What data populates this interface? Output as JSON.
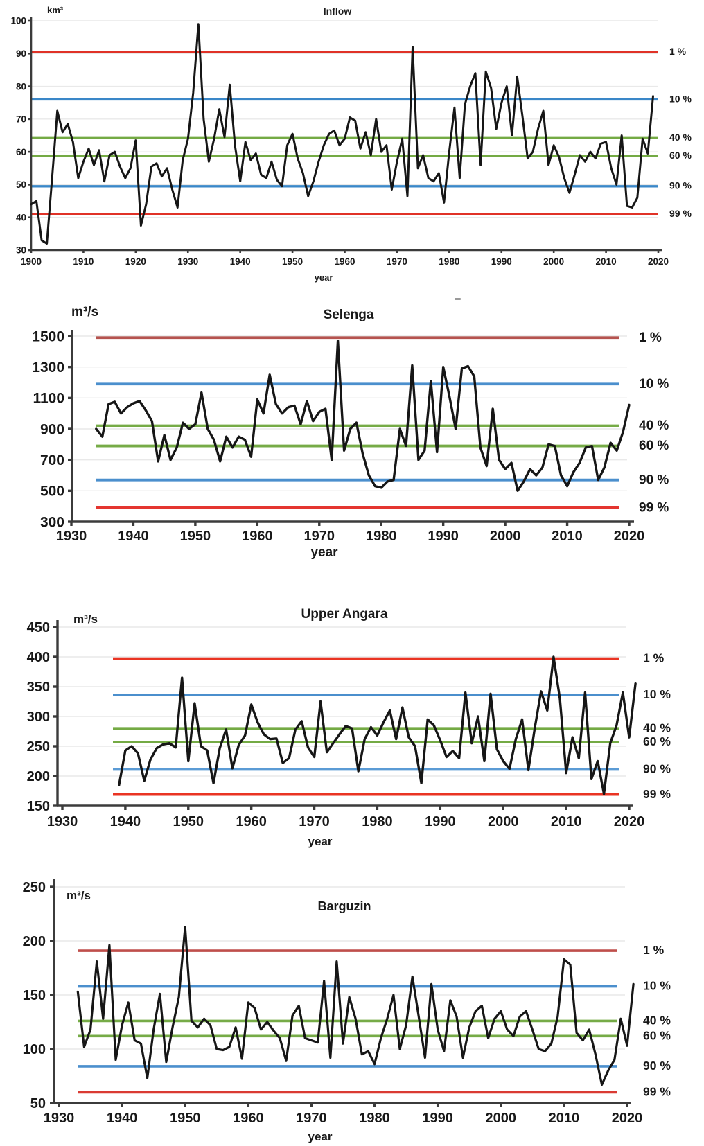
{
  "figure": {
    "background": "#ffffff",
    "axis_color": "#3b3b3b",
    "grid_color": "#e9e9e9",
    "stray_mark": "-"
  },
  "chart_data": [
    {
      "type": "line",
      "title": "Inflow",
      "unit_label": "km³",
      "xlabel": "year",
      "ylim": [
        30,
        100
      ],
      "yticks": [
        30,
        40,
        50,
        60,
        70,
        80,
        90,
        100
      ],
      "xlim": [
        1900,
        2020
      ],
      "xticks": [
        1900,
        1910,
        1920,
        1930,
        1940,
        1950,
        1960,
        1970,
        1980,
        1990,
        2000,
        2010,
        2020
      ],
      "grid": true,
      "legend_position": "right",
      "line_color": "#161616",
      "ref_lines": [
        {
          "label": "1 %",
          "value": 90.5,
          "color": "#e03227"
        },
        {
          "label": "10 %",
          "value": 76.0,
          "color": "#3a87c8"
        },
        {
          "label": "40 %",
          "value": 64.2,
          "color": "#74aa44"
        },
        {
          "label": "60 %",
          "value": 58.7,
          "color": "#74aa44"
        },
        {
          "label": "90 %",
          "value": 49.5,
          "color": "#3a87c8"
        },
        {
          "label": "99 %",
          "value": 41.0,
          "color": "#e03227"
        }
      ],
      "series": {
        "start_year": 1900,
        "values": [
          44,
          45,
          33,
          32,
          52,
          72.5,
          66,
          68.5,
          63,
          52,
          57,
          61,
          56,
          60.5,
          51,
          59,
          60,
          55.5,
          52,
          55,
          63.5,
          37.5,
          44,
          55.5,
          56.5,
          52.5,
          55,
          48.5,
          43,
          57.5,
          64,
          78,
          99,
          70,
          57,
          64,
          73,
          64.5,
          80.5,
          62,
          51,
          63,
          57.5,
          59.5,
          53,
          52,
          57,
          51.5,
          49.5,
          62,
          65.5,
          58,
          53.5,
          46.5,
          51,
          57,
          62,
          65.5,
          66.5,
          62,
          64,
          70.5,
          69.5,
          61,
          66,
          59,
          70,
          60,
          62,
          48.5,
          57,
          64,
          46.5,
          92,
          55,
          59,
          52,
          51,
          53.5,
          44.5,
          60,
          73.5,
          52,
          74.5,
          80,
          84,
          56,
          84.5,
          79.5,
          67,
          75,
          80,
          65,
          83,
          71,
          58,
          60,
          67,
          72.5,
          56,
          62,
          58.5,
          52,
          47.5,
          53,
          59,
          57,
          60,
          58,
          62.5,
          63,
          55,
          50,
          65,
          43.5,
          43,
          46,
          64,
          59.5,
          77
        ]
      }
    },
    {
      "type": "line",
      "title": "Selenga",
      "unit_label": "m³/s",
      "xlabel": "year",
      "ylim": [
        300,
        1500
      ],
      "yticks": [
        300,
        500,
        700,
        900,
        1100,
        1300,
        1500
      ],
      "xlim": [
        1930,
        2020
      ],
      "xticks": [
        1930,
        1940,
        1950,
        1960,
        1970,
        1980,
        1990,
        2000,
        2010,
        2020
      ],
      "grid": true,
      "legend_position": "right",
      "line_color": "#161616",
      "ref_lines": [
        {
          "label": "1 %",
          "value": 1490,
          "color": "#b5534f"
        },
        {
          "label": "10 %",
          "value": 1190,
          "color": "#4b8fcd"
        },
        {
          "label": "40 %",
          "value": 920,
          "color": "#76ab47"
        },
        {
          "label": "60 %",
          "value": 790,
          "color": "#76ab47"
        },
        {
          "label": "90 %",
          "value": 570,
          "color": "#4b8fcd"
        },
        {
          "label": "99 %",
          "value": 390,
          "color": "#e43530"
        }
      ],
      "series": {
        "start_year": 1934,
        "values": [
          900,
          850,
          1060,
          1075,
          1000,
          1040,
          1065,
          1080,
          1020,
          950,
          690,
          860,
          700,
          780,
          940,
          900,
          930,
          1135,
          900,
          830,
          690,
          850,
          780,
          850,
          830,
          720,
          1090,
          1000,
          1250,
          1060,
          1000,
          1040,
          1050,
          930,
          1080,
          950,
          1010,
          1030,
          700,
          1470,
          760,
          900,
          940,
          740,
          600,
          530,
          520,
          560,
          570,
          900,
          790,
          1310,
          700,
          760,
          1210,
          750,
          1300,
          1110,
          900,
          1290,
          1305,
          1240,
          780,
          660,
          1030,
          700,
          640,
          680,
          500,
          560,
          640,
          600,
          650,
          800,
          790,
          600,
          530,
          620,
          680,
          780,
          790,
          570,
          650,
          810,
          760,
          880,
          1055
        ]
      }
    },
    {
      "type": "line",
      "title": "Upper Angara",
      "unit_label": "m³/s",
      "xlabel": "year",
      "ylim": [
        150,
        450
      ],
      "yticks": [
        150,
        200,
        250,
        300,
        350,
        400,
        450
      ],
      "xlim": [
        1930,
        2020
      ],
      "xticks": [
        1930,
        1940,
        1950,
        1960,
        1970,
        1980,
        1990,
        2000,
        2010,
        2020
      ],
      "grid": true,
      "legend_position": "right",
      "line_color": "#161616",
      "ref_lines": [
        {
          "label": "1 %",
          "value": 397,
          "color": "#ea3423"
        },
        {
          "label": "10 %",
          "value": 336,
          "color": "#4b8fcd"
        },
        {
          "label": "40 %",
          "value": 280,
          "color": "#74aa44"
        },
        {
          "label": "60 %",
          "value": 257,
          "color": "#74aa44"
        },
        {
          "label": "90 %",
          "value": 211,
          "color": "#5b9bd5"
        },
        {
          "label": "99 %",
          "value": 169,
          "color": "#ea3423"
        }
      ],
      "series": {
        "start_year": 1939,
        "values": [
          185,
          243,
          250,
          238,
          192,
          228,
          247,
          253,
          255,
          248,
          365,
          225,
          322,
          250,
          243,
          188,
          247,
          278,
          213,
          252,
          268,
          320,
          290,
          270,
          262,
          263,
          222,
          230,
          278,
          292,
          248,
          232,
          325,
          240,
          255,
          270,
          284,
          280,
          208,
          262,
          282,
          268,
          290,
          310,
          262,
          315,
          265,
          250,
          188,
          295,
          285,
          260,
          232,
          242,
          230,
          340,
          255,
          300,
          225,
          338,
          245,
          225,
          212,
          262,
          295,
          210,
          280,
          342,
          310,
          400,
          330,
          205,
          265,
          230,
          340,
          195,
          225,
          170,
          255,
          285,
          340,
          265,
          355
        ]
      }
    },
    {
      "type": "line",
      "title": "Barguzin",
      "unit_label": "m³/s",
      "xlabel": "year",
      "ylim": [
        50,
        250
      ],
      "yticks": [
        50,
        100,
        150,
        200,
        250
      ],
      "xlim": [
        1930,
        2020
      ],
      "xticks": [
        1930,
        1940,
        1950,
        1960,
        1970,
        1980,
        1990,
        2000,
        2010,
        2020
      ],
      "grid": true,
      "legend_position": "right",
      "line_color": "#161616",
      "ref_lines": [
        {
          "label": "1 %",
          "value": 191,
          "color": "#bf4f4b"
        },
        {
          "label": "10 %",
          "value": 158,
          "color": "#4b8fcd"
        },
        {
          "label": "40 %",
          "value": 126,
          "color": "#76ab47"
        },
        {
          "label": "60 %",
          "value": 112,
          "color": "#76ab47"
        },
        {
          "label": "90 %",
          "value": 84,
          "color": "#4b8fcd"
        },
        {
          "label": "99 %",
          "value": 60,
          "color": "#da3b33"
        }
      ],
      "series": {
        "start_year": 1933,
        "values": [
          153,
          102,
          118,
          181,
          128,
          196,
          90,
          122,
          143,
          108,
          105,
          73,
          118,
          151,
          88,
          120,
          148,
          213,
          126,
          120,
          128,
          122,
          100,
          99,
          102,
          120,
          91,
          143,
          138,
          118,
          125,
          117,
          110,
          89,
          131,
          140,
          110,
          108,
          106,
          163,
          92,
          181,
          105,
          148,
          128,
          95,
          98,
          86,
          110,
          128,
          150,
          100,
          122,
          167,
          130,
          92,
          160,
          118,
          98,
          145,
          130,
          92,
          120,
          135,
          140,
          110,
          128,
          135,
          118,
          112,
          130,
          135,
          118,
          100,
          98,
          105,
          130,
          183,
          178,
          115,
          108,
          118,
          95,
          67,
          80,
          90,
          128,
          103,
          160
        ]
      }
    }
  ]
}
